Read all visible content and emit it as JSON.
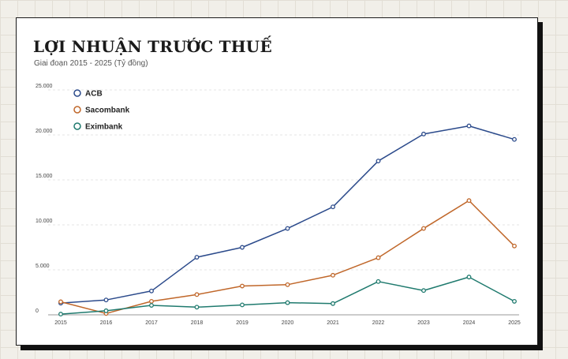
{
  "chart_data": {
    "type": "line",
    "title": "LỢI NHUẬN TRƯỚC THUẾ",
    "subtitle": "Giai đoạn 2015 - 2025 (Tỷ đồng)",
    "xlabel": "",
    "ylabel": "",
    "categories": [
      "2015",
      "2016",
      "2017",
      "2018",
      "2019",
      "2020",
      "2021",
      "2022",
      "2023",
      "2024",
      "2025"
    ],
    "ylim": [
      0,
      25000
    ],
    "yticks": [
      0,
      5000,
      10000,
      15000,
      20000,
      25000
    ],
    "ytick_labels": [
      "0",
      "5.000",
      "10.000",
      "15.000",
      "20.000",
      "25.000"
    ],
    "grid": true,
    "legend": "top-left",
    "series": [
      {
        "name": "ACB",
        "color": "#2b4a8b",
        "values": [
          1300,
          1650,
          2650,
          6400,
          7500,
          9600,
          12000,
          17100,
          20100,
          21000,
          19500
        ]
      },
      {
        "name": "Sacombank",
        "color": "#c0672a",
        "values": [
          1450,
          150,
          1500,
          2250,
          3200,
          3350,
          4400,
          6350,
          9600,
          12700,
          7650
        ]
      },
      {
        "name": "Eximbank",
        "color": "#1f7a6e",
        "values": [
          80,
          450,
          1050,
          850,
          1100,
          1350,
          1250,
          3700,
          2700,
          4200,
          1500
        ]
      }
    ]
  }
}
